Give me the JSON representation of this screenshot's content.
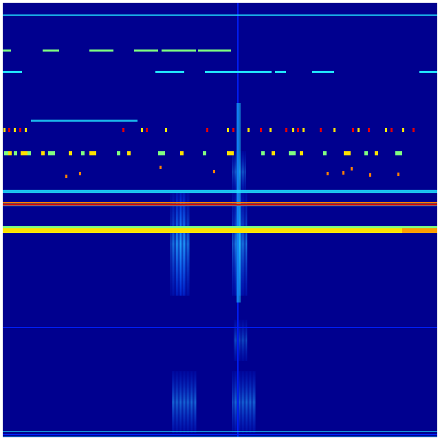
{
  "image": {
    "kind": "spectrogram-heatmap",
    "colormap": "jet",
    "colors": {
      "background": "#00008f",
      "blue": "#0020ff",
      "cyan": "#20e0ff",
      "green": "#80ff80",
      "yellow": "#ffe000",
      "orange": "#ff8000",
      "red": "#e00000"
    }
  }
}
